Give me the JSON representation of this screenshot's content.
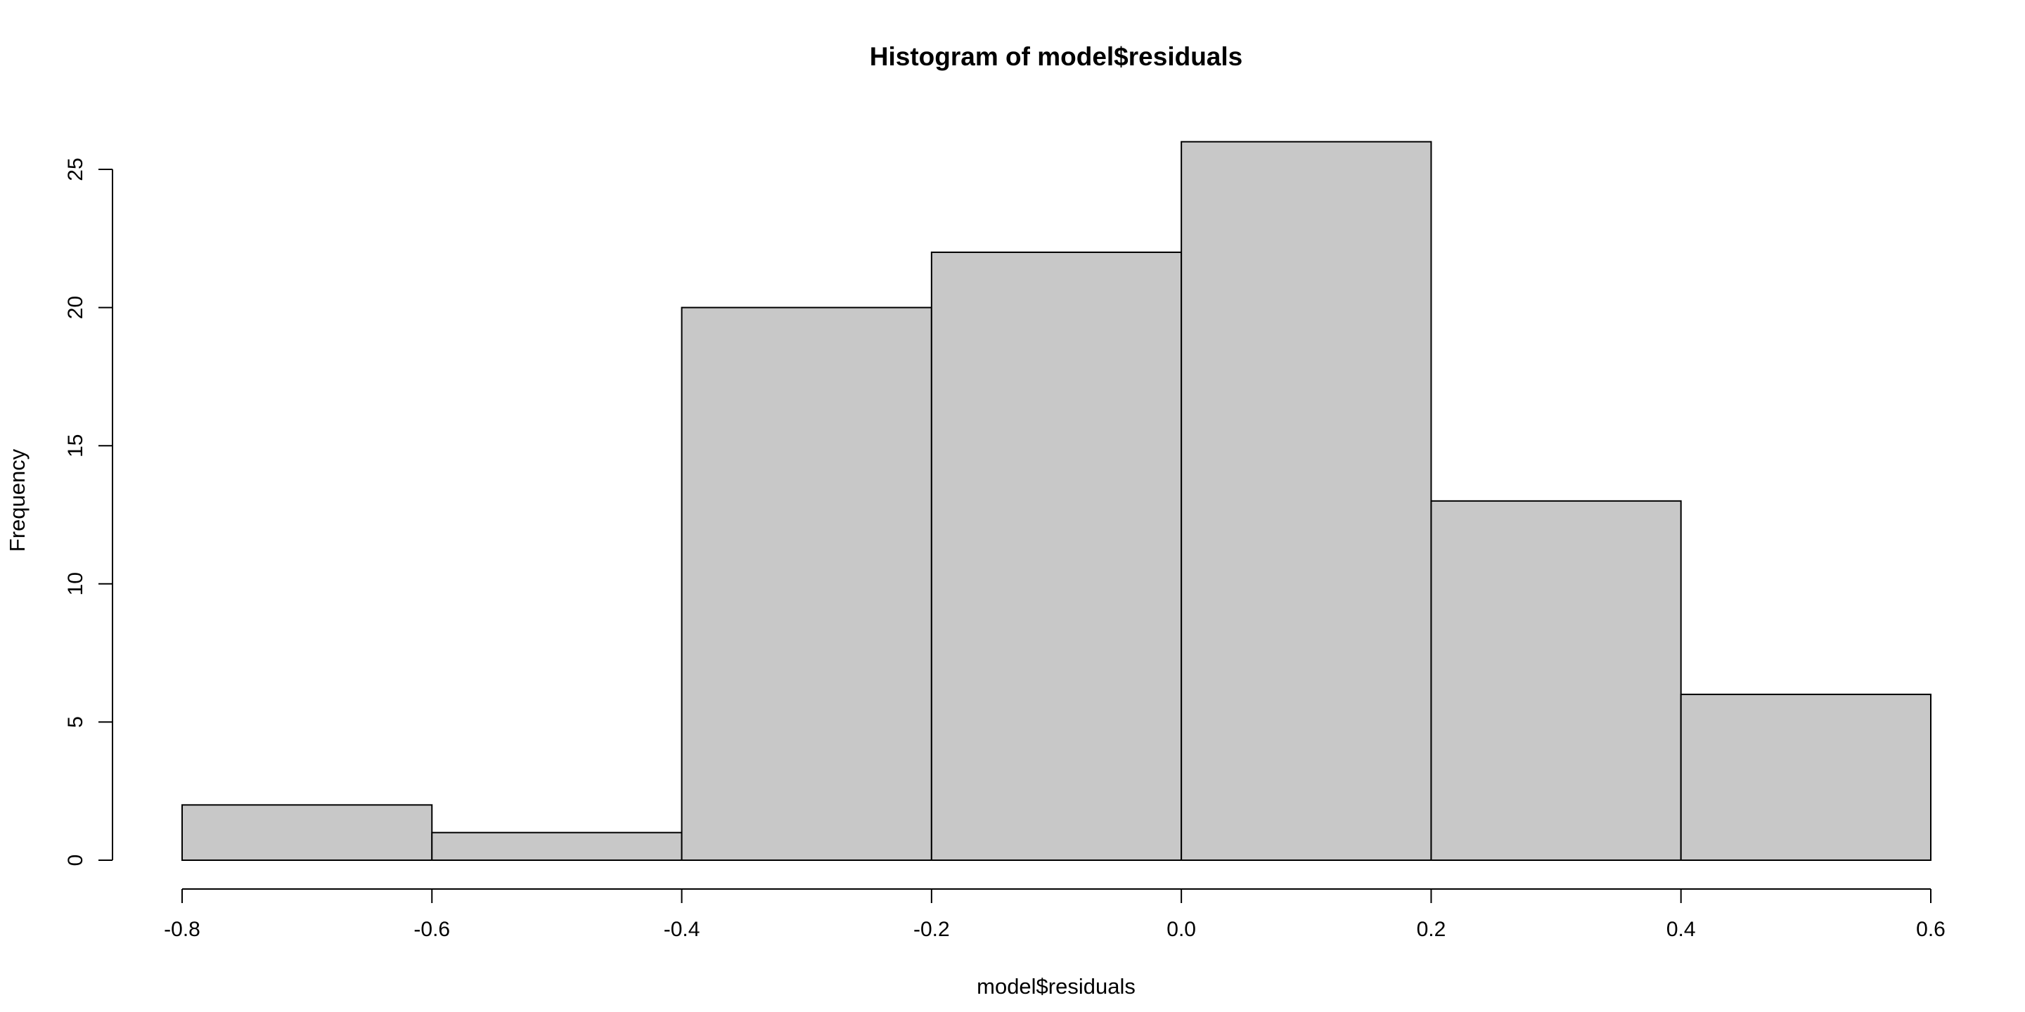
{
  "chart_data": {
    "type": "bar",
    "histogram": true,
    "title": "Histogram of model$residuals",
    "xlabel": "model$residuals",
    "ylabel": "Frequency",
    "bins": [
      {
        "x0": -0.8,
        "x1": -0.6,
        "count": 2
      },
      {
        "x0": -0.6,
        "x1": -0.4,
        "count": 1
      },
      {
        "x0": -0.4,
        "x1": -0.2,
        "count": 20
      },
      {
        "x0": -0.2,
        "x1": 0.0,
        "count": 22
      },
      {
        "x0": 0.0,
        "x1": 0.2,
        "count": 26
      },
      {
        "x0": 0.2,
        "x1": 0.4,
        "count": 13
      },
      {
        "x0": 0.4,
        "x1": 0.6,
        "count": 6
      }
    ],
    "xlim": [
      -0.8,
      0.6
    ],
    "ylim": [
      0,
      26
    ],
    "x_ticks": [
      -0.8,
      -0.6,
      -0.4,
      -0.2,
      0.0,
      0.2,
      0.4,
      0.6
    ],
    "x_tick_labels": [
      "-0.8",
      "-0.6",
      "-0.4",
      "-0.2",
      "0.0",
      "0.2",
      "0.4",
      "0.6"
    ],
    "y_ticks": [
      0,
      5,
      10,
      15,
      20,
      25
    ],
    "y_tick_labels": [
      "0",
      "5",
      "10",
      "15",
      "20",
      "25"
    ],
    "bar_color": "#c8c8c8",
    "border_color": "#000000",
    "grid": false,
    "legend": "none"
  }
}
